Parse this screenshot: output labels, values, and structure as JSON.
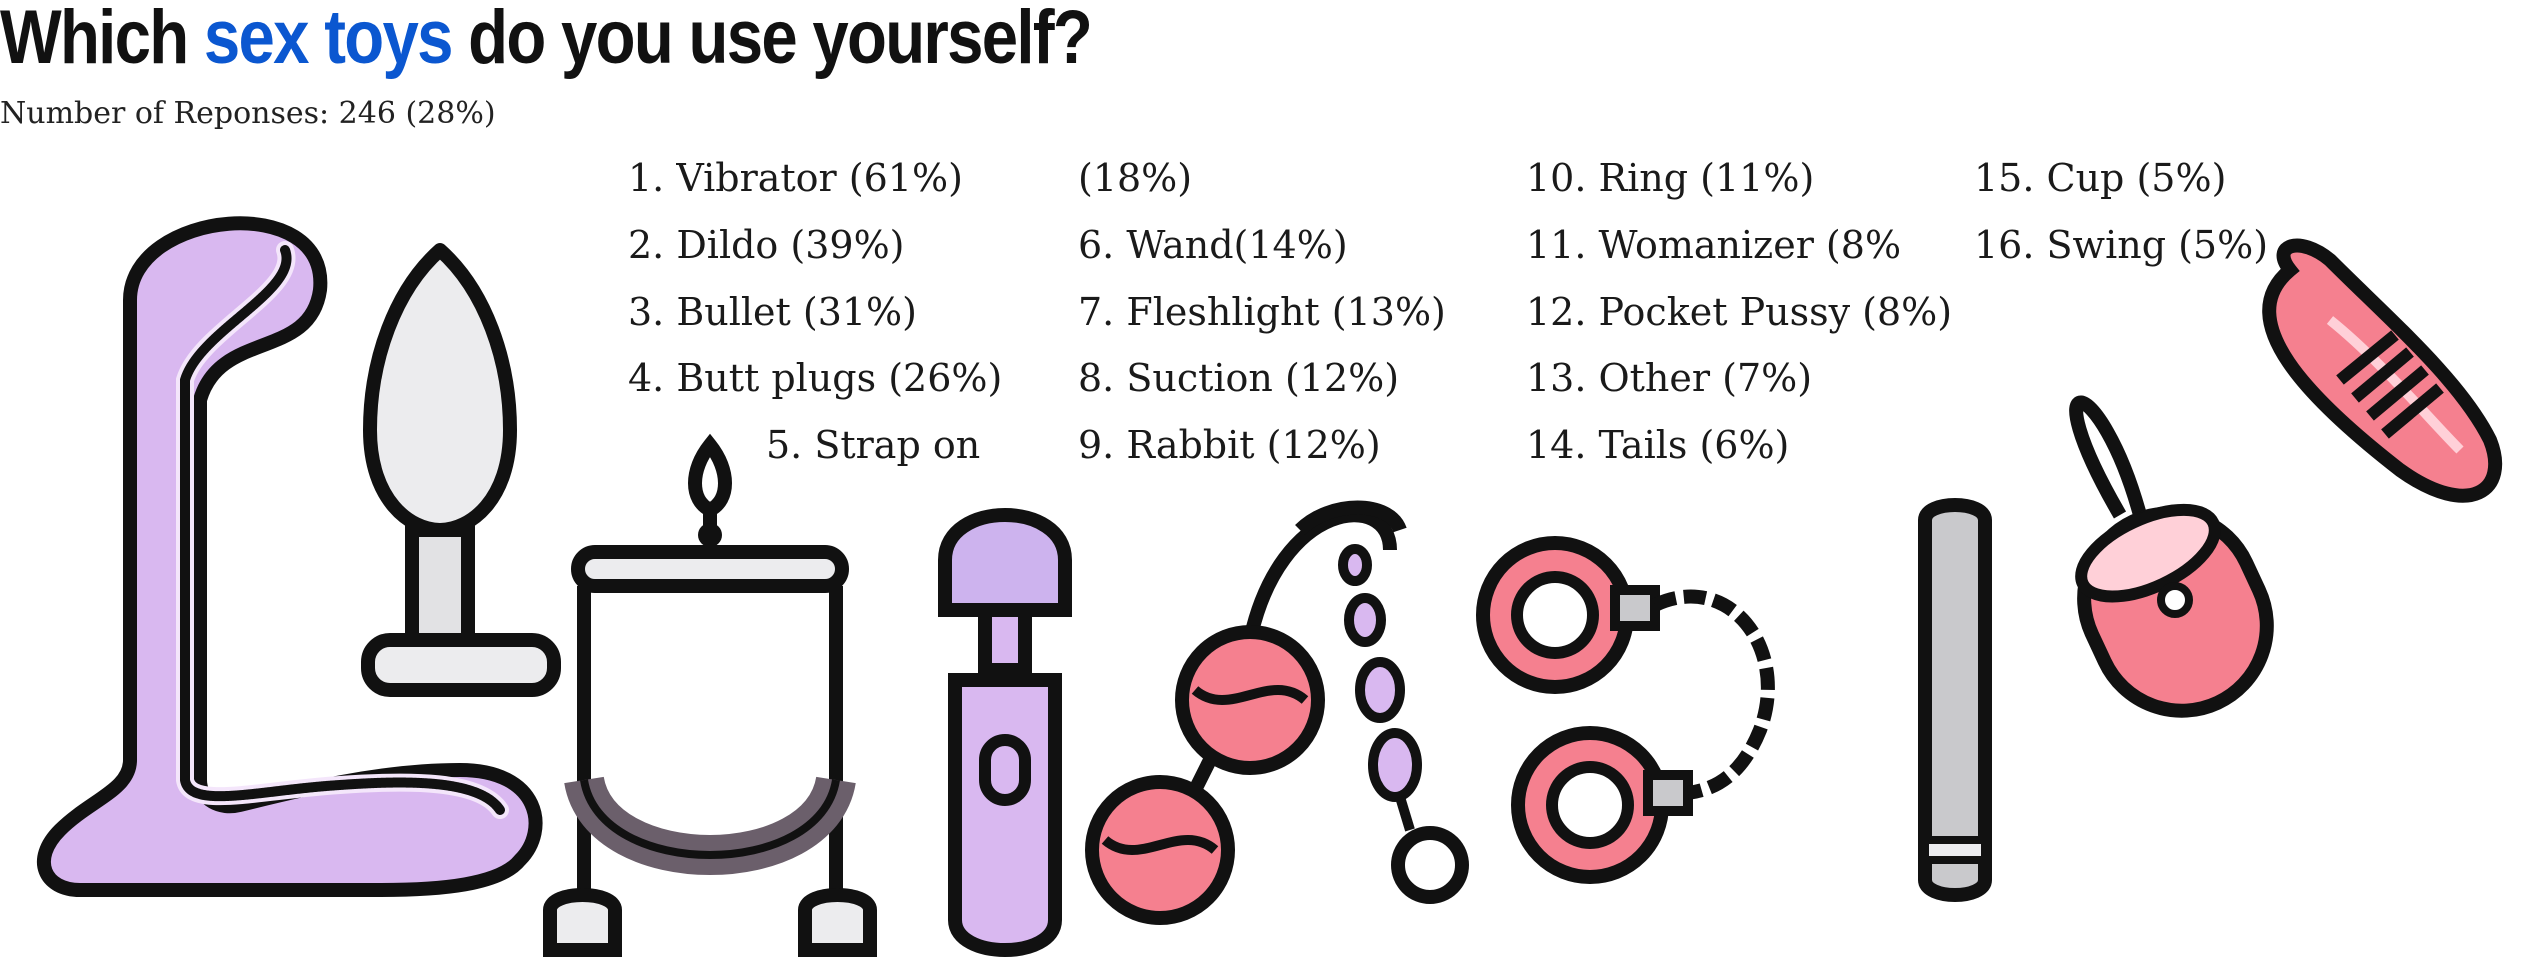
{
  "title": {
    "before": "Which ",
    "highlight": "sex toys",
    "after": " do you use yourself?"
  },
  "subtitle": "Number of Reponses: 246 (28%)",
  "items": [
    "1. Vibrator (61%)",
    "2. Dildo (39%)",
    "3. Bullet (31%)",
    "4. Butt plugs (26%)",
    "5. Strap on",
    "(18%)",
    "6. Wand(14%)",
    "7. Fleshlight (13%)",
    "8. Suction (12%)",
    "9. Rabbit (12%)",
    "10. Ring (11%)",
    "11. Womanizer (8%",
    "12. Pocket Pussy (8%)",
    "13. Other (7%)",
    "14. Tails (6%)",
    "15. Cup (5%)",
    "16. Swing (5%)"
  ],
  "colors": {
    "highlight": "#0b57d0",
    "purple": "#d9b8f0",
    "pink": "#f5808f",
    "gray": "#c9c9cc",
    "outline": "#111111"
  },
  "illustrations": [
    "dildo-icon",
    "butt-plug-icon",
    "sex-swing-icon",
    "wand-icon",
    "kegel-balls-icon",
    "anal-beads-icon",
    "handcuffs-icon",
    "vibrator-stick-icon",
    "bullet-egg-icon",
    "rope-icon"
  ]
}
